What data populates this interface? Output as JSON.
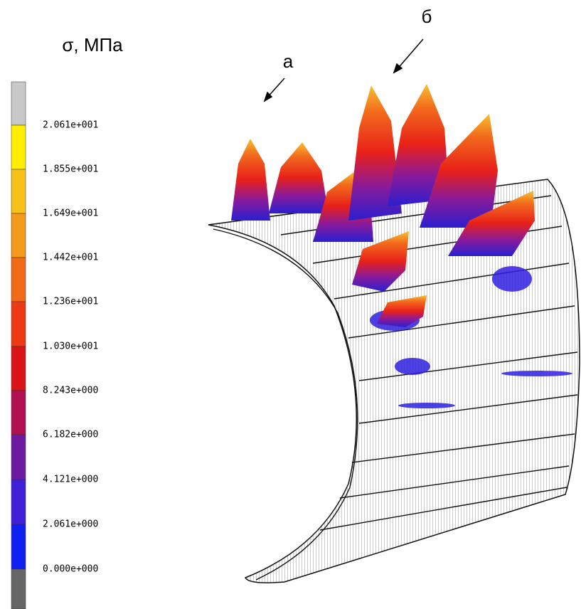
{
  "legend": {
    "title": "σ, МПа",
    "labels": [
      "2.061e+001",
      "1.855e+001",
      "1.649e+001",
      "1.442e+001",
      "1.236e+001",
      "1.030e+001",
      "8.243e+000",
      "6.182e+000",
      "4.121e+000",
      "2.061e+000",
      "0.000e+000"
    ]
  },
  "annotations": {
    "a": "а",
    "b": "б"
  }
}
